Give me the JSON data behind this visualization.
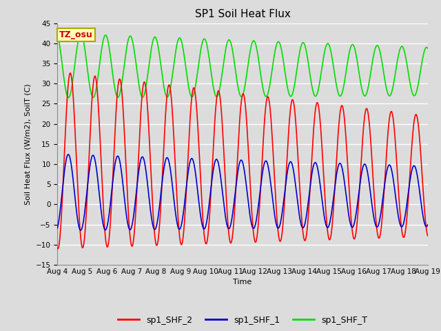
{
  "title": "SP1 Soil Heat Flux",
  "xlabel": "Time",
  "ylabel": "Soil Heat Flux (W/m2), SoilT (C)",
  "ylim": [
    -15,
    45
  ],
  "background_color": "#dcdcdc",
  "grid_color": "#ffffff",
  "series": [
    {
      "name": "sp1_SHF_2",
      "color": "#ff0000"
    },
    {
      "name": "sp1_SHF_1",
      "color": "#0000cc"
    },
    {
      "name": "sp1_SHF_T",
      "color": "#00dd00"
    }
  ],
  "tz_label": "TZ_osu",
  "tz_box_facecolor": "#ffffbb",
  "tz_box_edgecolor": "#aaaa00",
  "tz_text_color": "#cc0000",
  "x_tick_labels": [
    "Aug 4",
    "Aug 5",
    "Aug 6",
    "Aug 7",
    "Aug 8",
    "Aug 9",
    "Aug 10",
    "Aug 11",
    "Aug 12",
    "Aug 13",
    "Aug 14",
    "Aug 15",
    "Aug 16",
    "Aug 17",
    "Aug 18",
    "Aug 19"
  ],
  "num_days": 15,
  "points_per_day": 96,
  "title_fontsize": 11,
  "axis_fontsize": 8,
  "tick_fontsize": 7.5,
  "legend_fontsize": 9
}
